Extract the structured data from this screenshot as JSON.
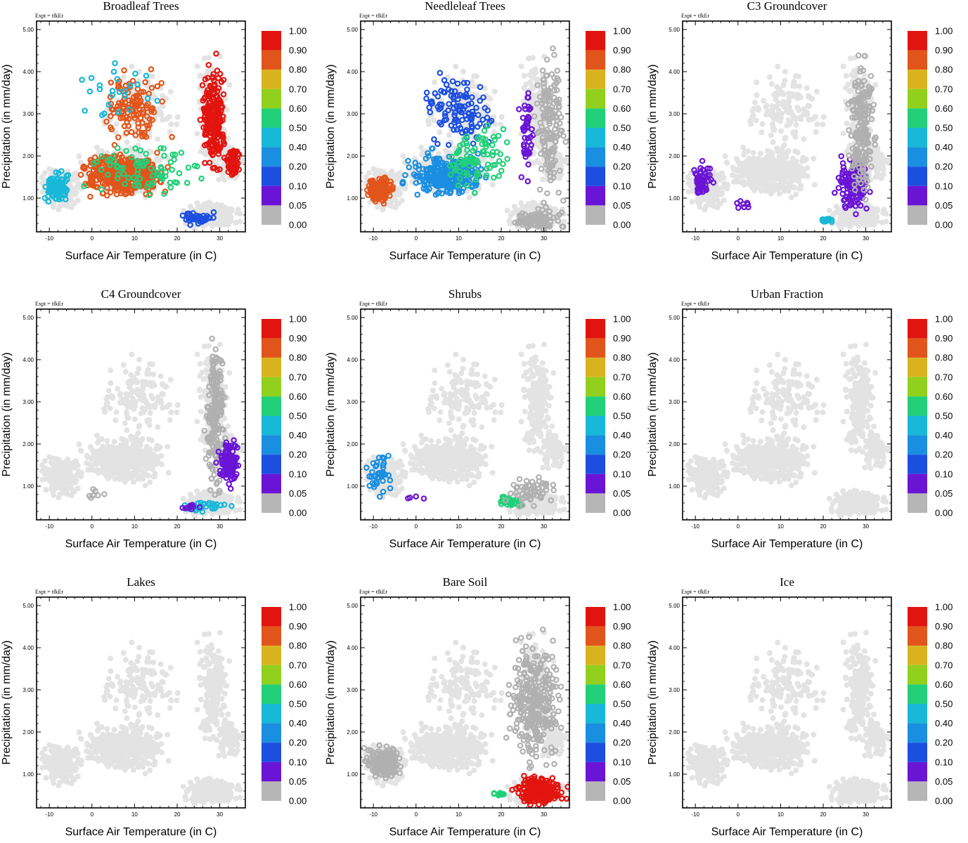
{
  "colorbar": {
    "labels": [
      "1.00",
      "0.90",
      "0.80",
      "0.70",
      "0.60",
      "0.50",
      "0.40",
      "0.20",
      "0.10",
      "0.05",
      "0.00"
    ],
    "colors": [
      "#e2140f",
      "#e2551a",
      "#d9b31e",
      "#92d01e",
      "#22d07a",
      "#18b8d8",
      "#1a8ee0",
      "#1c4fe0",
      "#6a14d6",
      "#b6b6b6",
      "#b6b6b6"
    ]
  },
  "shared": {
    "expt_label": "Expt = tfkEr",
    "xlabel": "Surface Air Temperature (in C)",
    "ylabel": "Precipitation (in mm/day)",
    "x_ticks": [
      "-10",
      "0",
      "10",
      "20",
      "30"
    ],
    "y_ticks": [
      "1.00",
      "2.00",
      "3.00",
      "4.00",
      "5.00"
    ]
  },
  "chart_data": [
    {
      "type": "scatter",
      "title": "Broadleaf Trees",
      "xlabel": "Surface Air Temperature (in C)",
      "ylabel": "Precipitation (in mm/day)",
      "xlim": [
        -13,
        36
      ],
      "ylim": [
        0.2,
        5.2
      ],
      "clusters": [
        {
          "x_range": [
            -12,
            -5
          ],
          "y_range": [
            0.8,
            1.7
          ],
          "value": 0.3,
          "count": 110
        },
        {
          "x_range": [
            -5,
            20
          ],
          "y_range": [
            0.9,
            2.2
          ],
          "value": 0.8,
          "count": 380
        },
        {
          "x_range": [
            0,
            20
          ],
          "y_range": [
            2.0,
            4.2
          ],
          "value": 0.8,
          "count": 110
        },
        {
          "x_range": [
            25,
            32
          ],
          "y_range": [
            1.3,
            4.6
          ],
          "value": 0.95,
          "count": 230
        },
        {
          "x_range": [
            31,
            35
          ],
          "y_range": [
            1.4,
            2.3
          ],
          "value": 0.85,
          "count": 70
        },
        {
          "x_range": [
            20,
            30
          ],
          "y_range": [
            0.35,
            0.7
          ],
          "value": 0.1,
          "count": 45
        },
        {
          "x_range": [
            -5,
            30
          ],
          "y_range": [
            0.8,
            2.5
          ],
          "value": 0.5,
          "count": 80
        },
        {
          "x_range": [
            -10,
            20
          ],
          "y_range": [
            2.5,
            4.8
          ],
          "value": 0.3,
          "count": 25
        }
      ]
    },
    {
      "type": "scatter",
      "title": "Needleleaf Trees",
      "xlabel": "Surface Air Temperature (in C)",
      "ylabel": "Precipitation (in mm/day)",
      "xlim": [
        -13,
        36
      ],
      "ylim": [
        0.2,
        5.2
      ],
      "clusters": [
        {
          "x_range": [
            -12,
            -5
          ],
          "y_range": [
            0.8,
            1.6
          ],
          "value": 0.75,
          "count": 160
        },
        {
          "x_range": [
            -5,
            20
          ],
          "y_range": [
            0.9,
            2.2
          ],
          "value": 0.15,
          "count": 260
        },
        {
          "x_range": [
            0,
            20
          ],
          "y_range": [
            2.0,
            4.2
          ],
          "value": 0.1,
          "count": 110
        },
        {
          "x_range": [
            5,
            25
          ],
          "y_range": [
            1.0,
            3.0
          ],
          "value": 0.5,
          "count": 90
        },
        {
          "x_range": [
            24,
            28
          ],
          "y_range": [
            1.0,
            4.4
          ],
          "value": 0.05,
          "count": 45
        },
        {
          "x_range": [
            27,
            36
          ],
          "y_range": [
            0.3,
            4.8
          ],
          "value": 0.0,
          "count": 150
        },
        {
          "x_range": [
            20,
            36
          ],
          "y_range": [
            0.2,
            0.8
          ],
          "value": 0.0,
          "count": 100
        }
      ]
    },
    {
      "type": "scatter",
      "title": "C3 Groundcover",
      "xlabel": "Surface Air Temperature (in C)",
      "ylabel": "Precipitation (in mm/day)",
      "xlim": [
        -13,
        36
      ],
      "ylim": [
        0.2,
        5.2
      ],
      "clusters": [
        {
          "x_range": [
            -12,
            -5
          ],
          "y_range": [
            0.8,
            2.0
          ],
          "value": 0.05,
          "count": 50
        },
        {
          "x_range": [
            -2,
            4
          ],
          "y_range": [
            0.7,
            1.0
          ],
          "value": 0.05,
          "count": 8
        },
        {
          "x_range": [
            22,
            32
          ],
          "y_range": [
            0.5,
            2.2
          ],
          "value": 0.05,
          "count": 130
        },
        {
          "x_range": [
            19,
            23
          ],
          "y_range": [
            0.35,
            0.6
          ],
          "value": 0.4,
          "count": 15
        },
        {
          "x_range": [
            25,
            33
          ],
          "y_range": [
            0.6,
            4.8
          ],
          "value": 0.0,
          "count": 200
        }
      ]
    },
    {
      "type": "scatter",
      "title": "C4 Groundcover",
      "xlabel": "Surface Air Temperature (in C)",
      "ylabel": "Precipitation (in mm/day)",
      "xlim": [
        -13,
        36
      ],
      "ylim": [
        0.2,
        5.2
      ],
      "clusters": [
        {
          "x_range": [
            -2,
            4
          ],
          "y_range": [
            0.6,
            1.0
          ],
          "value": 0.0,
          "count": 8
        },
        {
          "x_range": [
            26,
            32
          ],
          "y_range": [
            0.5,
            4.8
          ],
          "value": 0.0,
          "count": 200
        },
        {
          "x_range": [
            29,
            35
          ],
          "y_range": [
            0.9,
            2.2
          ],
          "value": 0.05,
          "count": 110
        },
        {
          "x_range": [
            20,
            34
          ],
          "y_range": [
            0.35,
            0.7
          ],
          "value": 0.3,
          "count": 25
        },
        {
          "x_range": [
            20,
            26
          ],
          "y_range": [
            0.4,
            0.6
          ],
          "value": 0.05,
          "count": 10
        }
      ]
    },
    {
      "type": "scatter",
      "title": "Shrubs",
      "xlabel": "Surface Air Temperature (in C)",
      "ylabel": "Precipitation (in mm/day)",
      "xlim": [
        -13,
        36
      ],
      "ylim": [
        0.2,
        5.2
      ],
      "clusters": [
        {
          "x_range": [
            -12,
            -5
          ],
          "y_range": [
            0.6,
            2.0
          ],
          "value": 0.25,
          "count": 40
        },
        {
          "x_range": [
            -6,
            5
          ],
          "y_range": [
            0.6,
            0.8
          ],
          "value": 0.05,
          "count": 4
        },
        {
          "x_range": [
            18,
            27
          ],
          "y_range": [
            0.45,
            0.8
          ],
          "value": 0.5,
          "count": 30
        },
        {
          "x_range": [
            20,
            34
          ],
          "y_range": [
            0.4,
            1.3
          ],
          "value": 0.0,
          "count": 60
        }
      ]
    },
    {
      "type": "scatter",
      "title": "Urban Fraction",
      "xlabel": "Surface Air Temperature (in C)",
      "ylabel": "Precipitation (in mm/day)",
      "xlim": [
        -13,
        36
      ],
      "ylim": [
        0.2,
        5.2
      ],
      "clusters": []
    },
    {
      "type": "scatter",
      "title": "Lakes",
      "xlabel": "Surface Air Temperature (in C)",
      "ylabel": "Precipitation (in mm/day)",
      "xlim": [
        -13,
        36
      ],
      "ylim": [
        0.2,
        5.2
      ],
      "clusters": []
    },
    {
      "type": "scatter",
      "title": "Bare Soil",
      "xlabel": "Surface Air Temperature (in C)",
      "ylabel": "Precipitation (in mm/day)",
      "xlim": [
        -13,
        36
      ],
      "ylim": [
        0.2,
        5.2
      ],
      "clusters": [
        {
          "x_range": [
            -13,
            -2
          ],
          "y_range": [
            0.8,
            1.8
          ],
          "value": 0.0,
          "count": 200
        },
        {
          "x_range": [
            20,
            36
          ],
          "y_range": [
            0.7,
            4.8
          ],
          "value": 0.0,
          "count": 300
        },
        {
          "x_range": [
            22,
            36
          ],
          "y_range": [
            0.2,
            1.0
          ],
          "value": 0.95,
          "count": 240
        },
        {
          "x_range": [
            17,
            22
          ],
          "y_range": [
            0.45,
            0.6
          ],
          "value": 0.5,
          "count": 12
        }
      ]
    },
    {
      "type": "scatter",
      "title": "Ice",
      "xlabel": "Surface Air Temperature (in C)",
      "ylabel": "Precipitation (in mm/day)",
      "xlim": [
        -13,
        36
      ],
      "ylim": [
        0.2,
        5.2
      ],
      "clusters": []
    }
  ]
}
